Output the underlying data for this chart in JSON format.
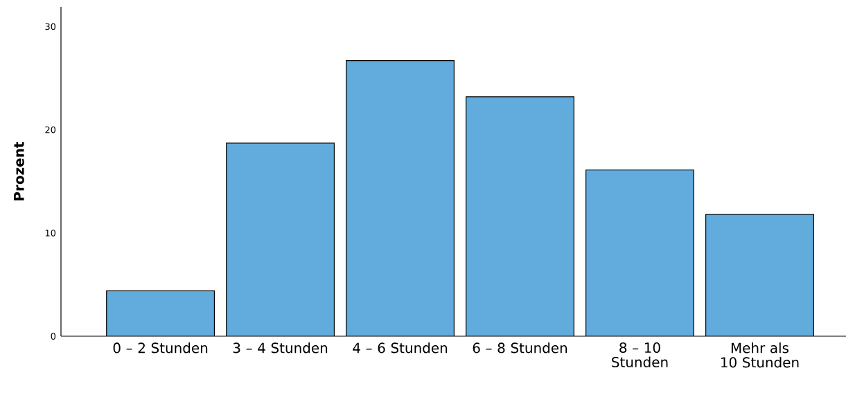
{
  "chart_data": {
    "type": "bar",
    "ylabel": "Prozent",
    "categories": [
      "0 – 2 Stunden",
      "3 – 4 Stunden",
      "4 – 6 Stunden",
      "6 – 8 Stunden",
      "8 – 10 Stunden",
      "Mehr als 10 Stunden"
    ],
    "values": [
      4.4,
      18.7,
      26.7,
      23.2,
      16.1,
      11.8
    ],
    "color": "#61abdd",
    "ylim": [
      0,
      31.9
    ],
    "yticks": [
      0,
      10,
      20,
      30
    ],
    "grid": false
  }
}
